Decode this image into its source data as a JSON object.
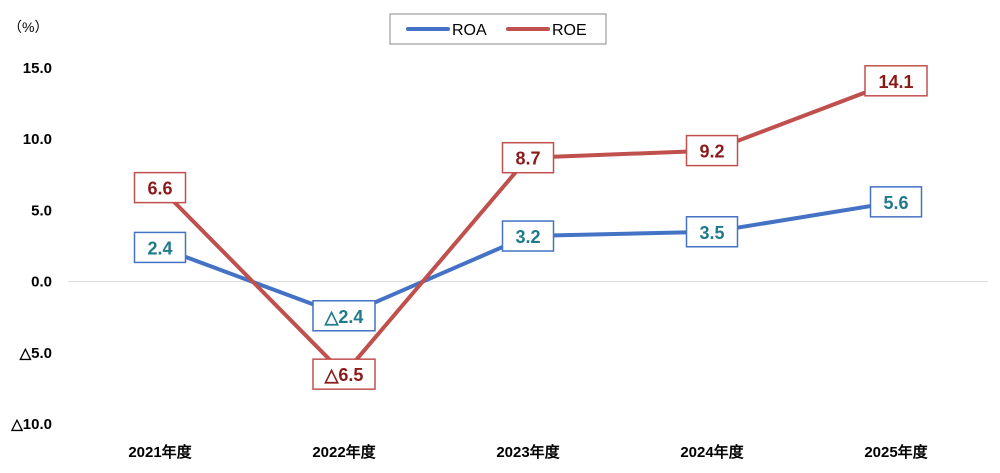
{
  "chart_data": {
    "type": "line",
    "unit_label": "（%）",
    "categories": [
      "2021年度",
      "2022年度",
      "2023年度",
      "2024年度",
      "2025年度"
    ],
    "y_ticks": [
      15.0,
      10.0,
      5.0,
      0.0,
      -5.0,
      -10.0
    ],
    "y_tick_labels": [
      "15.0",
      "10.0",
      "5.0",
      "0.0",
      "△5.0",
      "△10.0"
    ],
    "ylim": [
      -10,
      15
    ],
    "grid": false,
    "zero_line": true,
    "legend_position": "top-center",
    "series": [
      {
        "name": "ROA",
        "color": "#4472C4",
        "label_color": "#1F7A8C",
        "values": [
          2.4,
          -2.4,
          3.2,
          3.5,
          5.6
        ],
        "labels": [
          "2.4",
          "△2.4",
          "3.2",
          "3.5",
          "5.6"
        ]
      },
      {
        "name": "ROE",
        "color": "#C0504D",
        "label_color": "#8B1A1A",
        "values": [
          6.6,
          -6.5,
          8.7,
          9.2,
          14.1
        ],
        "labels": [
          "6.6",
          "△6.5",
          "8.7",
          "9.2",
          "14.1"
        ]
      }
    ]
  }
}
